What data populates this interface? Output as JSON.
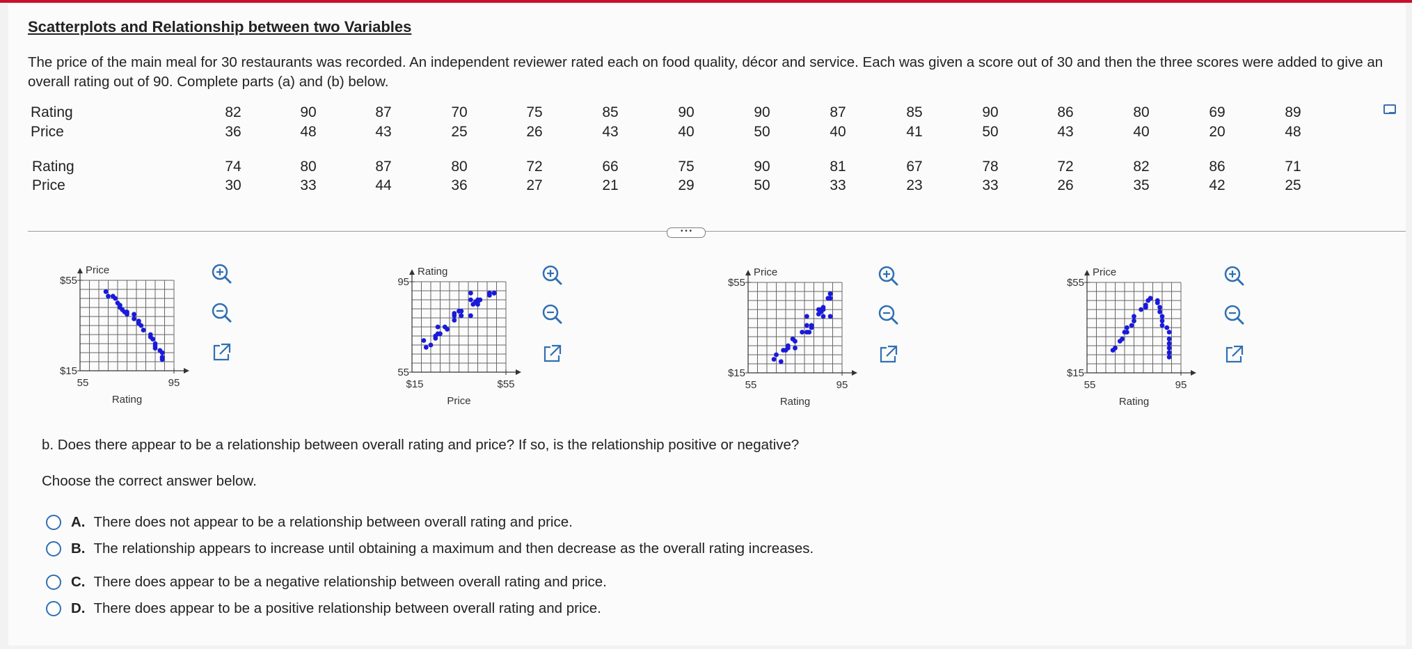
{
  "title": "Scatterplots and Relationship between two Variables",
  "intro": "The price of the main meal for 30 restaurants was recorded. An independent reviewer rated each on food quality, décor and service. Each was given a score out of 30 and then the three scores were added to give an overall rating out of 90. Complete parts (a) and (b) below.",
  "table": {
    "row_label_rating": "Rating",
    "row_label_price": "Price",
    "group1": {
      "rating": [
        "82",
        "90",
        "87",
        "70",
        "75",
        "85",
        "90",
        "90",
        "87",
        "85",
        "90",
        "86",
        "80",
        "69",
        "89"
      ],
      "price": [
        "36",
        "48",
        "43",
        "25",
        "26",
        "43",
        "40",
        "50",
        "40",
        "41",
        "50",
        "43",
        "40",
        "20",
        "48"
      ]
    },
    "group2": {
      "rating": [
        "74",
        "80",
        "87",
        "80",
        "72",
        "66",
        "75",
        "90",
        "81",
        "67",
        "78",
        "72",
        "82",
        "86",
        "71"
      ],
      "price": [
        "30",
        "33",
        "44",
        "36",
        "27",
        "21",
        "29",
        "50",
        "33",
        "23",
        "33",
        "26",
        "35",
        "42",
        "25"
      ]
    }
  },
  "more_button": "• • •",
  "chart_data": [
    {
      "type": "scatter",
      "option": "A",
      "ylabel": "Price",
      "xlabel": "Rating",
      "xlim": [
        55,
        95
      ],
      "ylim": [
        15,
        55
      ],
      "x_ticks": [
        "55",
        "95"
      ],
      "y_ticks": [
        "$55",
        "$15"
      ],
      "points": [
        [
          66,
          50
        ],
        [
          67,
          48
        ],
        [
          69,
          48
        ],
        [
          70,
          47
        ],
        [
          71,
          45
        ],
        [
          72,
          43
        ],
        [
          72,
          44
        ],
        [
          73,
          42
        ],
        [
          74,
          41
        ],
        [
          75,
          40
        ],
        [
          75,
          41
        ],
        [
          78,
          40
        ],
        [
          78,
          38
        ],
        [
          80,
          37
        ],
        [
          80,
          36
        ],
        [
          81,
          35
        ],
        [
          82,
          33
        ],
        [
          82,
          33
        ],
        [
          85,
          31
        ],
        [
          85,
          30
        ],
        [
          86,
          29
        ],
        [
          86,
          29
        ],
        [
          87,
          27
        ],
        [
          87,
          26
        ],
        [
          87,
          25
        ],
        [
          89,
          24
        ],
        [
          90,
          23
        ],
        [
          90,
          21
        ],
        [
          90,
          20
        ],
        [
          90,
          21
        ]
      ]
    },
    {
      "type": "scatter",
      "option": "B",
      "ylabel": "Rating",
      "xlabel": "Price",
      "xlim": [
        15,
        55
      ],
      "ylim": [
        55,
        95
      ],
      "x_ticks": [
        "$15",
        "$55"
      ],
      "y_ticks": [
        "95",
        "55"
      ],
      "points": [
        [
          20,
          69
        ],
        [
          21,
          66
        ],
        [
          23,
          67
        ],
        [
          25,
          70
        ],
        [
          25,
          71
        ],
        [
          26,
          72
        ],
        [
          26,
          75
        ],
        [
          27,
          72
        ],
        [
          29,
          75
        ],
        [
          30,
          74
        ],
        [
          33,
          80
        ],
        [
          33,
          81
        ],
        [
          33,
          78
        ],
        [
          35,
          82
        ],
        [
          36,
          82
        ],
        [
          36,
          80
        ],
        [
          40,
          80
        ],
        [
          40,
          90
        ],
        [
          40,
          87
        ],
        [
          41,
          85
        ],
        [
          42,
          86
        ],
        [
          43,
          87
        ],
        [
          43,
          85
        ],
        [
          43,
          86
        ],
        [
          44,
          87
        ],
        [
          48,
          90
        ],
        [
          48,
          89
        ],
        [
          50,
          90
        ],
        [
          50,
          90
        ],
        [
          50,
          90
        ]
      ]
    },
    {
      "type": "scatter",
      "option": "C",
      "ylabel": "Price",
      "xlabel": "Rating",
      "xlim": [
        55,
        95
      ],
      "ylim": [
        15,
        55
      ],
      "x_ticks": [
        "55",
        "95"
      ],
      "y_ticks": [
        "$55",
        "$15"
      ],
      "points": [
        [
          66,
          21
        ],
        [
          67,
          23
        ],
        [
          69,
          20
        ],
        [
          70,
          25
        ],
        [
          71,
          25
        ],
        [
          72,
          27
        ],
        [
          72,
          26
        ],
        [
          74,
          30
        ],
        [
          75,
          26
        ],
        [
          75,
          29
        ],
        [
          78,
          33
        ],
        [
          80,
          33
        ],
        [
          80,
          36
        ],
        [
          80,
          40
        ],
        [
          81,
          33
        ],
        [
          82,
          36
        ],
        [
          82,
          35
        ],
        [
          85,
          43
        ],
        [
          85,
          41
        ],
        [
          86,
          43
        ],
        [
          86,
          42
        ],
        [
          87,
          43
        ],
        [
          87,
          40
        ],
        [
          87,
          44
        ],
        [
          89,
          48
        ],
        [
          90,
          48
        ],
        [
          90,
          40
        ],
        [
          90,
          50
        ],
        [
          90,
          50
        ],
        [
          90,
          50
        ]
      ]
    },
    {
      "type": "scatter",
      "option": "D",
      "ylabel": "Price",
      "xlabel": "Rating",
      "xlim": [
        55,
        95
      ],
      "ylim": [
        15,
        55
      ],
      "x_ticks": [
        "55",
        "95"
      ],
      "y_ticks": [
        "$55",
        "$15"
      ],
      "points": [
        [
          66,
          25
        ],
        [
          67,
          26
        ],
        [
          69,
          29
        ],
        [
          70,
          30
        ],
        [
          71,
          33
        ],
        [
          72,
          33
        ],
        [
          72,
          35
        ],
        [
          74,
          36
        ],
        [
          75,
          38
        ],
        [
          75,
          40
        ],
        [
          78,
          43
        ],
        [
          80,
          44
        ],
        [
          80,
          45
        ],
        [
          81,
          47
        ],
        [
          82,
          48
        ],
        [
          82,
          48
        ],
        [
          85,
          47
        ],
        [
          85,
          46
        ],
        [
          86,
          44
        ],
        [
          86,
          42
        ],
        [
          87,
          40
        ],
        [
          87,
          38
        ],
        [
          87,
          36
        ],
        [
          89,
          35
        ],
        [
          90,
          33
        ],
        [
          90,
          30
        ],
        [
          90,
          28
        ],
        [
          90,
          26
        ],
        [
          90,
          24
        ],
        [
          90,
          22
        ]
      ]
    }
  ],
  "question_b": "b. Does there appear to be a relationship between overall rating and price? If so, is the relationship positive or negative?",
  "choose": "Choose the correct answer below.",
  "options": [
    {
      "letter": "A.",
      "text": "There does not appear to be a relationship between overall rating and price."
    },
    {
      "letter": "B.",
      "text": "The relationship appears to increase until obtaining a maximum and then decrease as the overall rating increases."
    },
    {
      "letter": "C.",
      "text": "There does appear to be a negative relationship between overall rating and price."
    },
    {
      "letter": "D.",
      "text": "There does appear to be a positive relationship between overall rating and price."
    }
  ],
  "colors": {
    "accent_bar": "#c8102e",
    "point": "#1a1adb",
    "radio": "#2f6fb3",
    "icon": "#2f6fb3"
  },
  "icons": [
    "zoom-in-icon",
    "zoom-out-icon",
    "external-link-icon",
    "chevron-down-icon"
  ]
}
